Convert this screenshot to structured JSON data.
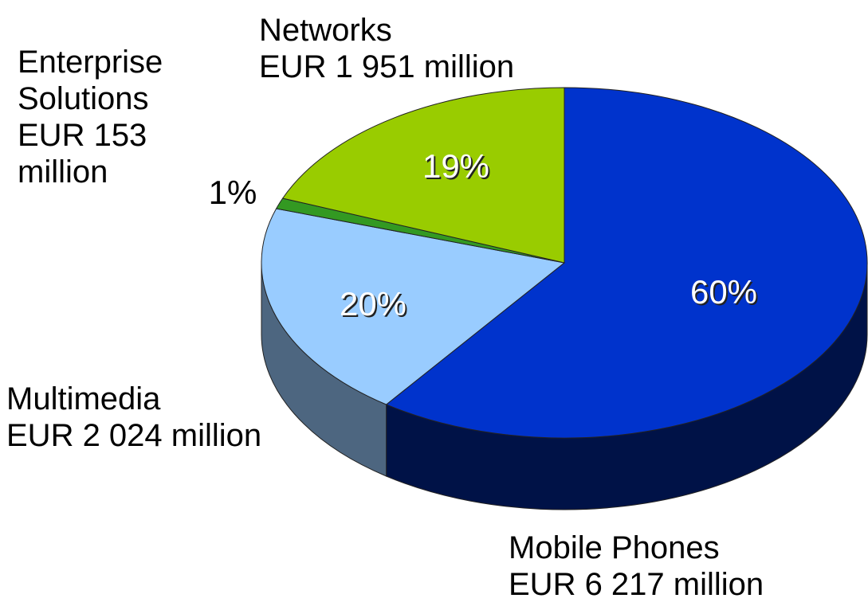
{
  "chart_data": {
    "type": "pie",
    "categories": [
      "Mobile Phones",
      "Multimedia",
      "Enterprise Solutions",
      "Networks"
    ],
    "amounts": [
      "EUR 6 217 million",
      "EUR 2 024 million",
      "EUR 153 million",
      "EUR 1 951 million"
    ],
    "values": [
      60,
      20,
      1,
      19
    ],
    "value_labels": [
      "60%",
      "20%",
      "1%",
      "19%"
    ],
    "colors": [
      "#0033cc",
      "#99ccff",
      "#339922",
      "#99cc00"
    ]
  }
}
